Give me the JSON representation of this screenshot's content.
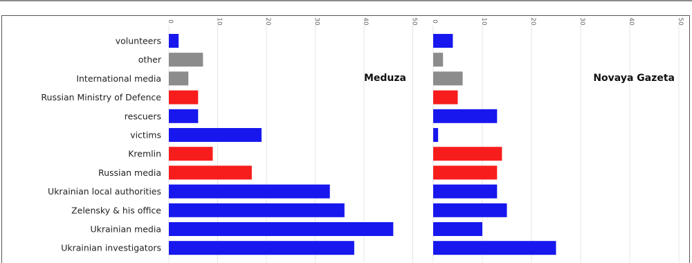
{
  "chart_data": {
    "type": "bar",
    "orientation": "horizontal",
    "categories": [
      "volunteers",
      "other",
      "International media",
      "Russian Ministry of Defence",
      "rescuers",
      "victims",
      "Kremlin",
      "Russian media",
      "Ukrainian local authorities",
      "Zelensky & his office",
      "Ukrainian media",
      "Ukrainian investigators"
    ],
    "category_colors": [
      "#1717ee",
      "#8c8c8c",
      "#8c8c8c",
      "#f81d1d",
      "#1717ee",
      "#1717ee",
      "#f81d1d",
      "#f81d1d",
      "#1717ee",
      "#1717ee",
      "#1717ee",
      "#1717ee"
    ],
    "xlim": [
      0,
      50
    ],
    "xticks": [
      0,
      10,
      20,
      30,
      40,
      50
    ],
    "grid": true,
    "panels": [
      {
        "title": "Meduza",
        "values": [
          2,
          7,
          4,
          6,
          6,
          19,
          9,
          17,
          33,
          36,
          46,
          38
        ]
      },
      {
        "title": "Novaya Gazeta",
        "values": [
          4,
          2,
          6,
          5,
          13,
          1,
          14,
          13,
          13,
          15,
          10,
          25
        ]
      }
    ]
  }
}
